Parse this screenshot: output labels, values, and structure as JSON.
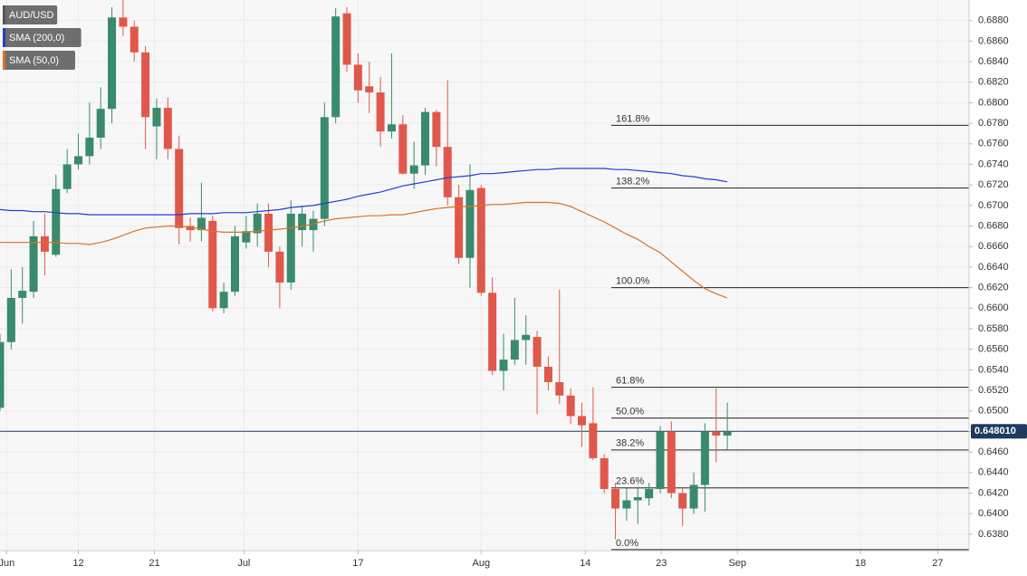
{
  "chart_data": {
    "type": "candlestick",
    "series": [
      {
        "name": "AUD/USD",
        "color": "#555555",
        "open": [
          0.6503,
          0.6567,
          0.661,
          0.6616,
          0.667,
          0.6652,
          0.6716,
          0.674,
          0.6748,
          0.6766,
          0.6794,
          0.6883,
          0.6874,
          0.6849,
          0.6777,
          0.6795,
          0.6755,
          0.668,
          0.6676,
          0.6685,
          0.66,
          0.6616,
          0.6664,
          0.6673,
          0.6692,
          0.6655,
          0.6625,
          0.6676,
          0.6676,
          0.6687,
          0.6786,
          0.6887,
          0.6837,
          0.6816,
          0.681,
          0.6772,
          0.6779,
          0.6731,
          0.6739,
          0.6791,
          0.6757,
          0.6708,
          0.6649,
          0.6717,
          0.6615,
          0.6539,
          0.655,
          0.6569,
          0.6572,
          0.6543,
          0.6528,
          0.6515,
          0.6495,
          0.6488,
          0.6454,
          0.6424,
          0.6405,
          0.6413,
          0.6415,
          0.6424,
          0.648,
          0.642,
          0.6405,
          0.6428,
          0.648,
          0.6476
        ],
        "high": [
          0.6575,
          0.6638,
          0.664,
          0.6685,
          0.6692,
          0.673,
          0.6755,
          0.677,
          0.68,
          0.6815,
          0.6893,
          0.69,
          0.688,
          0.6855,
          0.6804,
          0.6805,
          0.6768,
          0.6688,
          0.6722,
          0.669,
          0.6625,
          0.668,
          0.669,
          0.6702,
          0.6702,
          0.666,
          0.6705,
          0.67,
          0.6695,
          0.68,
          0.6892,
          0.6893,
          0.6848,
          0.684,
          0.6825,
          0.6848,
          0.6788,
          0.6762,
          0.6795,
          0.6793,
          0.6822,
          0.672,
          0.674,
          0.672,
          0.663,
          0.6575,
          0.661,
          0.6593,
          0.6578,
          0.6553,
          0.6618,
          0.6522,
          0.6508,
          0.6523,
          0.6458,
          0.643,
          0.6425,
          0.6426,
          0.643,
          0.6485,
          0.649,
          0.6425,
          0.644,
          0.6488,
          0.6522,
          0.6508
        ],
        "low": [
          0.65,
          0.656,
          0.6585,
          0.661,
          0.6632,
          0.665,
          0.6712,
          0.6735,
          0.674,
          0.6755,
          0.678,
          0.6865,
          0.684,
          0.6755,
          0.6745,
          0.6745,
          0.6662,
          0.6665,
          0.6665,
          0.6597,
          0.6595,
          0.6612,
          0.6658,
          0.666,
          0.664,
          0.66,
          0.6618,
          0.666,
          0.6655,
          0.668,
          0.678,
          0.683,
          0.68,
          0.679,
          0.6757,
          0.6765,
          0.673,
          0.6716,
          0.673,
          0.6738,
          0.67,
          0.6643,
          0.662,
          0.6612,
          0.6535,
          0.652,
          0.6545,
          0.6545,
          0.6497,
          0.652,
          0.6507,
          0.6487,
          0.6465,
          0.6452,
          0.642,
          0.6375,
          0.6393,
          0.639,
          0.6408,
          0.642,
          0.6415,
          0.6388,
          0.64,
          0.6402,
          0.645,
          0.6462
        ],
        "close": [
          0.6567,
          0.661,
          0.6617,
          0.667,
          0.6655,
          0.6716,
          0.674,
          0.6748,
          0.6766,
          0.6794,
          0.6883,
          0.6874,
          0.6849,
          0.6786,
          0.6795,
          0.6755,
          0.6678,
          0.6676,
          0.6688,
          0.66,
          0.6616,
          0.667,
          0.6675,
          0.6692,
          0.6655,
          0.6625,
          0.6692,
          0.6692,
          0.6687,
          0.6786,
          0.6884,
          0.6837,
          0.6812,
          0.681,
          0.6772,
          0.6779,
          0.6731,
          0.6739,
          0.6791,
          0.6757,
          0.6708,
          0.6649,
          0.6715,
          0.6615,
          0.6539,
          0.655,
          0.6569,
          0.6574,
          0.6543,
          0.6528,
          0.6515,
          0.6495,
          0.6486,
          0.6454,
          0.6424,
          0.6405,
          0.6413,
          0.6416,
          0.6424,
          0.648,
          0.642,
          0.6405,
          0.6428,
          0.648,
          0.6476,
          0.648
        ]
      }
    ],
    "up_color": "#3a8a6c",
    "down_color": "#e0584b",
    "lines": [
      {
        "name": "SMA (200,0)",
        "color": "#1f3fd0",
        "values": [
          0.6696,
          0.6695,
          0.6695,
          0.6694,
          0.6694,
          0.6693,
          0.6692,
          0.6692,
          0.6691,
          0.6691,
          0.6691,
          0.6691,
          0.6691,
          0.6691,
          0.6691,
          0.6691,
          0.6691,
          0.6692,
          0.6692,
          0.6692,
          0.6693,
          0.6693,
          0.6693,
          0.6694,
          0.6695,
          0.6696,
          0.6698,
          0.6699,
          0.67,
          0.6702,
          0.6704,
          0.6706,
          0.6709,
          0.6711,
          0.6713,
          0.6716,
          0.6719,
          0.6721,
          0.6723,
          0.6725,
          0.6727,
          0.6728,
          0.6729,
          0.6731,
          0.6731,
          0.6732,
          0.6733,
          0.6734,
          0.6735,
          0.6735,
          0.6736,
          0.6736,
          0.6736,
          0.6736,
          0.6736,
          0.6735,
          0.6735,
          0.6734,
          0.6733,
          0.6732,
          0.6731,
          0.6729,
          0.6728,
          0.6726,
          0.6725,
          0.6723
        ]
      },
      {
        "name": "SMA (50,0)",
        "color": "#e0701e",
        "values": [
          0.6664,
          0.6664,
          0.6664,
          0.6664,
          0.6664,
          0.6664,
          0.6663,
          0.6663,
          0.6662,
          0.6664,
          0.6667,
          0.6671,
          0.6675,
          0.6678,
          0.6679,
          0.668,
          0.668,
          0.6679,
          0.6677,
          0.6675,
          0.6674,
          0.6674,
          0.6674,
          0.6675,
          0.6676,
          0.6677,
          0.6678,
          0.668,
          0.6682,
          0.6685,
          0.6687,
          0.6688,
          0.6689,
          0.669,
          0.669,
          0.6691,
          0.6691,
          0.6693,
          0.6695,
          0.6697,
          0.6698,
          0.6699,
          0.6699,
          0.67,
          0.6701,
          0.6701,
          0.6702,
          0.6703,
          0.6703,
          0.6703,
          0.6702,
          0.6699,
          0.6694,
          0.6689,
          0.6684,
          0.6678,
          0.6672,
          0.6667,
          0.666,
          0.6654,
          0.6645,
          0.6636,
          0.6627,
          0.6619,
          0.6614,
          0.661
        ]
      }
    ],
    "fib_levels": [
      {
        "label": "161.8%",
        "value": 0.6778
      },
      {
        "label": "138.2%",
        "value": 0.6717
      },
      {
        "label": "100.0%",
        "value": 0.662
      },
      {
        "label": "61.8%",
        "value": 0.6523
      },
      {
        "label": "50.0%",
        "value": 0.6493
      },
      {
        "label": "38.2%",
        "value": 0.6462
      },
      {
        "label": "23.6%",
        "value": 0.6425
      },
      {
        "label": "0.0%",
        "value": 0.6365
      }
    ],
    "price_line": {
      "value": 0.64801,
      "label": "0.648010",
      "color": "#1e3a5f"
    },
    "xlim": [
      0,
      86.6
    ],
    "xticks": [
      {
        "value": 0.6,
        "label": "Jun"
      },
      {
        "value": 7.0,
        "label": "12"
      },
      {
        "value": 13.8,
        "label": "21"
      },
      {
        "value": 21.8,
        "label": "Jul"
      },
      {
        "value": 32.0,
        "label": "17"
      },
      {
        "value": 43.0,
        "label": "Aug"
      },
      {
        "value": 52.3,
        "label": "14"
      },
      {
        "value": 59.1,
        "label": "23"
      },
      {
        "value": 65.9,
        "label": "Sep"
      },
      {
        "value": 76.9,
        "label": "18"
      },
      {
        "value": 83.8,
        "label": "27"
      }
    ],
    "ylim": [
      0.6364,
      0.69
    ],
    "yticks": [
      {
        "value": 0.638,
        "label": "0.6380"
      },
      {
        "value": 0.64,
        "label": "0.6400"
      },
      {
        "value": 0.642,
        "label": "0.6420"
      },
      {
        "value": 0.644,
        "label": "0.6440"
      },
      {
        "value": 0.646,
        "label": "0.6460"
      },
      {
        "value": 0.648,
        "label": "0.6480"
      },
      {
        "value": 0.65,
        "label": "0.6500"
      },
      {
        "value": 0.652,
        "label": "0.6520"
      },
      {
        "value": 0.654,
        "label": "0.6540"
      },
      {
        "value": 0.656,
        "label": "0.6560"
      },
      {
        "value": 0.658,
        "label": "0.6580"
      },
      {
        "value": 0.66,
        "label": "0.6600"
      },
      {
        "value": 0.662,
        "label": "0.6620"
      },
      {
        "value": 0.664,
        "label": "0.6640"
      },
      {
        "value": 0.666,
        "label": "0.6660"
      },
      {
        "value": 0.668,
        "label": "0.6680"
      },
      {
        "value": 0.67,
        "label": "0.6700"
      },
      {
        "value": 0.672,
        "label": "0.6720"
      },
      {
        "value": 0.674,
        "label": "0.6740"
      },
      {
        "value": 0.676,
        "label": "0.6760"
      },
      {
        "value": 0.678,
        "label": "0.6780"
      },
      {
        "value": 0.68,
        "label": "0.6800"
      },
      {
        "value": 0.682,
        "label": "0.6820"
      },
      {
        "value": 0.684,
        "label": "0.6840"
      },
      {
        "value": 0.686,
        "label": "0.6860"
      },
      {
        "value": 0.688,
        "label": "0.6880"
      }
    ],
    "grid": true
  }
}
